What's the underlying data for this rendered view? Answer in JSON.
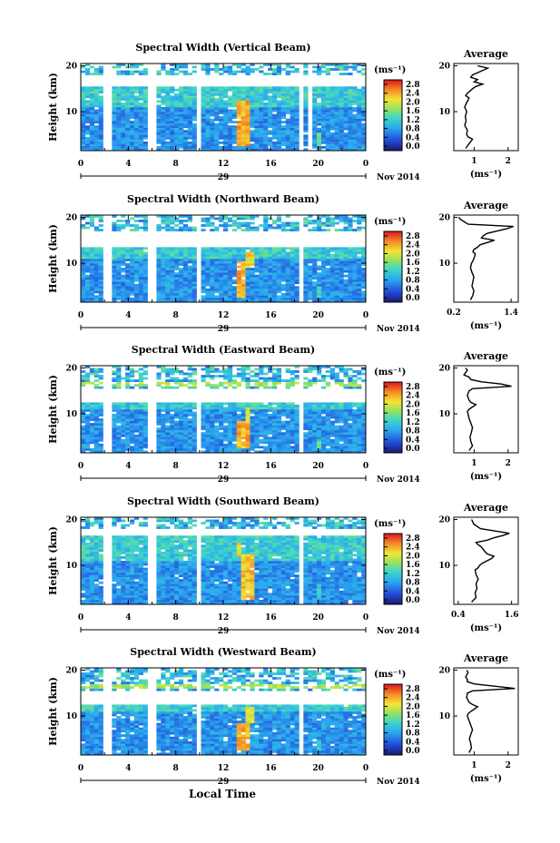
{
  "figure": {
    "xlabel": "Local Time",
    "date_mid": "29",
    "month_year": "Nov 2014",
    "ylabel": "Height (km)",
    "colorbar_unit": "(ms⁻¹)",
    "avg_title": "Average",
    "avg_xlabel": "(ms⁻¹)"
  },
  "chart_data": [
    {
      "type": "heatmap",
      "title": "Spectral Width (Vertical Beam)",
      "x_ticks": [
        "0",
        "4",
        "8",
        "12",
        "16",
        "20",
        "0"
      ],
      "xlim": [
        0,
        24
      ],
      "y_ticks": [
        "20",
        "10"
      ],
      "ylim": [
        1.5,
        20.5
      ],
      "colorbar_ticks": [
        "2.8",
        "2.4",
        "2.0",
        "1.6",
        "1.2",
        "0.8",
        "0.4",
        "0.0"
      ],
      "colorbar_range": [
        0.0,
        3.0
      ],
      "missing_time_bands": [
        [
          2.0,
          2.5
        ],
        [
          5.8,
          6.2
        ],
        [
          9.8,
          10.1
        ],
        [
          10.7,
          11.0
        ],
        [
          18.4,
          18.8
        ],
        [
          19.1,
          19.4
        ]
      ],
      "missing_height_band": [
        15.5,
        18.0
      ],
      "enhanced_regions": [
        {
          "t_start": 13.2,
          "t_end": 14.3,
          "h_start": 2.5,
          "h_end": 12.5,
          "value": 2.6
        },
        {
          "t_start": 19.8,
          "t_end": 20.4,
          "h_start": 2.5,
          "h_end": 5.5,
          "value": 1.8
        }
      ]
    },
    {
      "type": "line",
      "title": "Average",
      "xlabel": "(ms⁻¹)",
      "x_ticks": [
        "1",
        "2"
      ],
      "xlim": [
        0.4,
        2.3
      ],
      "ylim": [
        1.5,
        20.5
      ],
      "y_ticks": [
        "20",
        "10"
      ],
      "x": [
        0.75,
        0.85,
        0.95,
        0.82,
        0.78,
        0.8,
        0.72,
        0.76,
        0.74,
        0.78,
        0.75,
        0.72,
        0.78,
        0.82,
        0.85,
        0.75,
        0.8,
        0.95,
        1.05,
        1.25,
        1.0,
        1.1,
        0.9,
        0.95,
        1.1,
        1.4,
        1.1
      ],
      "y": [
        2,
        3,
        4,
        4.5,
        5,
        6,
        7,
        8,
        9,
        10,
        10.5,
        11,
        12,
        12.5,
        13,
        13.5,
        14,
        15,
        15.5,
        16,
        16.5,
        17,
        17.5,
        18,
        18.5,
        19.5,
        20
      ]
    },
    {
      "type": "heatmap",
      "title": "Spectral Width (Northward Beam)",
      "x_ticks": [
        "0",
        "4",
        "8",
        "12",
        "16",
        "20",
        "0"
      ],
      "xlim": [
        0,
        24
      ],
      "y_ticks": [
        "20",
        "10"
      ],
      "ylim": [
        1.5,
        20.5
      ],
      "colorbar_ticks": [
        "2.8",
        "2.4",
        "2.0",
        "1.6",
        "1.2",
        "0.8",
        "0.4",
        "0.0"
      ],
      "colorbar_range": [
        0.0,
        3.0
      ],
      "missing_time_bands": [
        [
          2.0,
          2.5
        ],
        [
          5.8,
          6.2
        ],
        [
          9.8,
          10.1
        ],
        [
          10.7,
          11.0
        ],
        [
          18.4,
          18.8
        ]
      ],
      "missing_height_band": [
        13.5,
        17.0
      ],
      "enhanced_regions": [
        {
          "t_start": 13.2,
          "t_end": 14.0,
          "h_start": 2.5,
          "h_end": 10.5,
          "value": 2.6
        },
        {
          "t_start": 14.0,
          "t_end": 14.6,
          "h_start": 9.0,
          "h_end": 12.5,
          "value": 2.4
        },
        {
          "t_start": 19.8,
          "t_end": 20.3,
          "h_start": 2.5,
          "h_end": 5.0,
          "value": 1.6
        }
      ]
    },
    {
      "type": "line",
      "title": "Average",
      "xlabel": "(ms⁻¹)",
      "x_ticks": [
        "0.2",
        "1.4"
      ],
      "xlim": [
        0.2,
        1.55
      ],
      "ylim": [
        1.5,
        20.5
      ],
      "y_ticks": [
        "20",
        "10"
      ],
      "x": [
        0.55,
        0.6,
        0.62,
        0.58,
        0.6,
        0.62,
        0.58,
        0.55,
        0.57,
        0.6,
        0.62,
        0.65,
        0.6,
        0.62,
        0.7,
        0.75,
        0.9,
        1.05,
        0.78,
        0.82,
        0.9,
        1.1,
        1.3,
        1.45,
        0.5,
        0.35,
        0.3
      ],
      "y": [
        2,
        3,
        4,
        5,
        6,
        7,
        8,
        9,
        10,
        10.5,
        11,
        12,
        12.5,
        13,
        13.5,
        14,
        14.5,
        15,
        15.5,
        16,
        16.5,
        17,
        17.5,
        18,
        18.5,
        19.5,
        20
      ]
    },
    {
      "type": "heatmap",
      "title": "Spectral Width (Eastward Beam)",
      "x_ticks": [
        "0",
        "4",
        "8",
        "12",
        "16",
        "20",
        "0"
      ],
      "xlim": [
        0,
        24
      ],
      "y_ticks": [
        "20",
        "10"
      ],
      "ylim": [
        1.5,
        20.5
      ],
      "colorbar_ticks": [
        "2.8",
        "2.4",
        "2.0",
        "1.6",
        "1.2",
        "0.8",
        "0.4",
        "0.0"
      ],
      "colorbar_range": [
        0.0,
        3.0
      ],
      "missing_time_bands": [
        [
          2.0,
          2.5
        ],
        [
          5.8,
          6.2
        ],
        [
          9.8,
          10.1
        ],
        [
          10.7,
          11.0
        ],
        [
          18.4,
          18.8
        ]
      ],
      "missing_height_band": [
        12.5,
        15.5
      ],
      "enhanced_regions": [
        {
          "t_start": 13.2,
          "t_end": 14.2,
          "h_start": 2.5,
          "h_end": 8.5,
          "value": 2.6
        },
        {
          "t_start": 13.8,
          "t_end": 14.4,
          "h_start": 8.5,
          "h_end": 11.5,
          "value": 2.2
        },
        {
          "t_start": 19.8,
          "t_end": 20.3,
          "h_start": 2.5,
          "h_end": 4.5,
          "value": 1.6
        },
        {
          "t_start": 0.0,
          "t_end": 24.0,
          "h_start": 16.2,
          "h_end": 17.0,
          "value": 2.0
        }
      ]
    },
    {
      "type": "line",
      "title": "Average",
      "xlabel": "(ms⁻¹)",
      "x_ticks": [
        "1",
        "2"
      ],
      "xlim": [
        0.4,
        2.3
      ],
      "ylim": [
        1.5,
        20.5
      ],
      "y_ticks": [
        "20",
        "10"
      ],
      "x": [
        0.85,
        0.95,
        0.9,
        0.88,
        0.92,
        0.95,
        0.9,
        0.85,
        0.82,
        0.8,
        0.85,
        0.95,
        1.05,
        0.9,
        0.85,
        0.8,
        0.85,
        0.95,
        2.1,
        1.8,
        1.2,
        0.9,
        0.85,
        0.7,
        0.8,
        0.75
      ],
      "y": [
        2,
        3,
        4,
        5,
        6,
        7,
        8,
        9,
        10,
        10.5,
        11,
        11.5,
        12,
        12.5,
        13,
        14,
        15,
        15.5,
        16,
        16.5,
        17,
        17.5,
        18,
        18.5,
        19.5,
        20
      ]
    },
    {
      "type": "heatmap",
      "title": "Spectral Width (Southward Beam)",
      "x_ticks": [
        "0",
        "4",
        "8",
        "12",
        "16",
        "20",
        "0"
      ],
      "xlim": [
        0,
        24
      ],
      "y_ticks": [
        "20",
        "10"
      ],
      "ylim": [
        1.5,
        20.5
      ],
      "colorbar_ticks": [
        "2.8",
        "2.4",
        "2.0",
        "1.6",
        "1.2",
        "0.8",
        "0.4",
        "0.0"
      ],
      "colorbar_range": [
        0.0,
        3.0
      ],
      "missing_time_bands": [
        [
          2.0,
          2.5
        ],
        [
          5.8,
          6.2
        ],
        [
          9.8,
          10.1
        ],
        [
          10.7,
          11.0
        ],
        [
          18.4,
          18.8
        ]
      ],
      "missing_height_band": [
        16.5,
        18.0
      ],
      "enhanced_regions": [
        {
          "t_start": 13.5,
          "t_end": 14.6,
          "h_start": 2.5,
          "h_end": 12.5,
          "value": 2.5
        },
        {
          "t_start": 13.0,
          "t_end": 13.4,
          "h_start": 12.0,
          "h_end": 15.0,
          "value": 2.4
        },
        {
          "t_start": 19.8,
          "t_end": 20.3,
          "h_start": 3.0,
          "h_end": 6.0,
          "value": 1.5
        }
      ]
    },
    {
      "type": "line",
      "title": "Average",
      "xlabel": "(ms⁻¹)",
      "x_ticks": [
        "0.4",
        "1.6"
      ],
      "xlim": [
        0.3,
        1.75
      ],
      "ylim": [
        1.5,
        20.5
      ],
      "y_ticks": [
        "20",
        "10"
      ],
      "x": [
        0.7,
        0.8,
        0.78,
        0.82,
        0.8,
        0.85,
        0.8,
        0.78,
        0.85,
        0.88,
        0.95,
        1.05,
        1.15,
        1.2,
        1.05,
        1.0,
        0.92,
        0.85,
        0.8,
        1.05,
        1.2,
        1.4,
        1.55,
        0.9,
        0.75,
        0.7
      ],
      "y": [
        2,
        3,
        4,
        5,
        6,
        7,
        8,
        9,
        9.5,
        10,
        10.5,
        11,
        11.5,
        12,
        12.5,
        13,
        14,
        14.5,
        15,
        15.5,
        16,
        16.5,
        17,
        18,
        19,
        20
      ]
    },
    {
      "type": "heatmap",
      "title": "Spectral Width (Westward Beam)",
      "x_ticks": [
        "0",
        "4",
        "8",
        "12",
        "16",
        "20",
        "0"
      ],
      "xlim": [
        0,
        24
      ],
      "y_ticks": [
        "20",
        "10"
      ],
      "ylim": [
        1.5,
        20.5
      ],
      "colorbar_ticks": [
        "2.8",
        "2.4",
        "2.0",
        "1.6",
        "1.2",
        "0.8",
        "0.4",
        "0.0"
      ],
      "colorbar_range": [
        0.0,
        3.0
      ],
      "missing_time_bands": [
        [
          2.0,
          2.5
        ],
        [
          5.8,
          6.2
        ],
        [
          9.8,
          10.1
        ],
        [
          10.7,
          11.0
        ],
        [
          18.4,
          18.8
        ]
      ],
      "missing_height_band": [
        12.5,
        15.5
      ],
      "enhanced_regions": [
        {
          "t_start": 13.2,
          "t_end": 14.3,
          "h_start": 2.5,
          "h_end": 8.5,
          "value": 2.6
        },
        {
          "t_start": 14.0,
          "t_end": 14.5,
          "h_start": 8.5,
          "h_end": 12.0,
          "value": 2.2
        },
        {
          "t_start": 19.8,
          "t_end": 20.3,
          "h_start": 2.5,
          "h_end": 4.5,
          "value": 1.6
        },
        {
          "t_start": 0.0,
          "t_end": 24.0,
          "h_start": 16.2,
          "h_end": 17.0,
          "value": 2.0
        }
      ]
    },
    {
      "type": "line",
      "title": "Average",
      "xlabel": "(ms⁻¹)",
      "x_ticks": [
        "1",
        "2"
      ],
      "xlim": [
        0.4,
        2.3
      ],
      "ylim": [
        1.5,
        20.5
      ],
      "y_ticks": [
        "20",
        "10"
      ],
      "x": [
        0.85,
        0.92,
        0.9,
        0.86,
        0.9,
        0.95,
        0.9,
        0.85,
        0.8,
        0.82,
        0.9,
        1.0,
        1.1,
        0.95,
        0.85,
        0.78,
        0.8,
        0.95,
        2.2,
        1.6,
        1.0,
        0.8,
        0.8,
        0.75,
        0.82,
        0.78
      ],
      "y": [
        2,
        3,
        4,
        5,
        6,
        7,
        8,
        9,
        10,
        10.5,
        11,
        11.5,
        12,
        12.5,
        13,
        14,
        15,
        15.5,
        16,
        16.5,
        17,
        17.5,
        18,
        18.5,
        19.5,
        20
      ]
    }
  ]
}
